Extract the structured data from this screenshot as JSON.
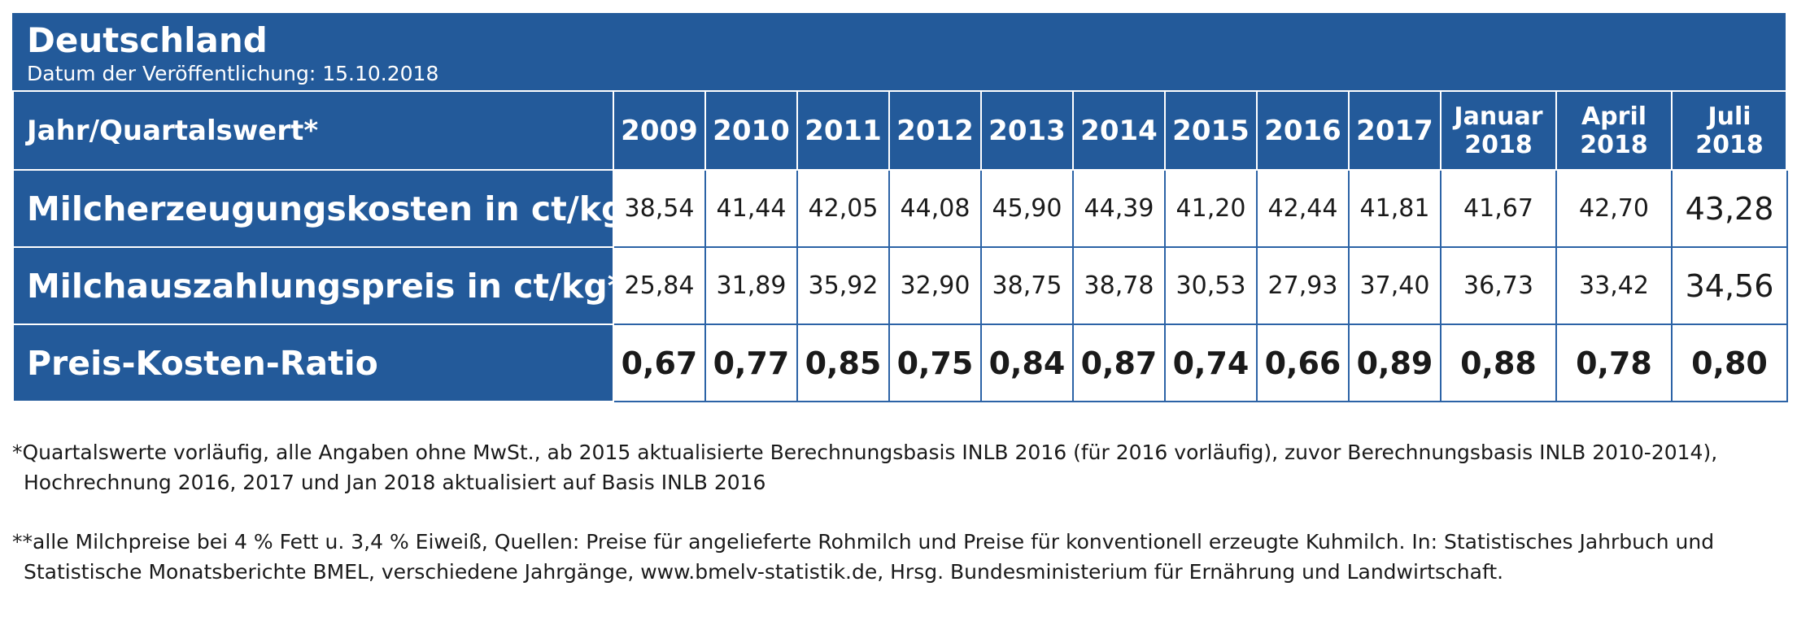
{
  "panel": {
    "title": "Deutschland",
    "subtitle": "Datum der Veröffentlichung: 15.10.2018"
  },
  "colors": {
    "panel_bg": "#235a9a",
    "cell_bg": "#ffffff",
    "grid_line": "#2c63a6"
  },
  "chart_data": {
    "type": "table",
    "title": "Deutschland",
    "subtitle": "Datum der Veröffentlichung: 15.10.2018",
    "row_header_label": "Jahr/Quartalswert*",
    "columns": [
      {
        "line1": "2009",
        "line2": ""
      },
      {
        "line1": "2010",
        "line2": ""
      },
      {
        "line1": "2011",
        "line2": ""
      },
      {
        "line1": "2012",
        "line2": ""
      },
      {
        "line1": "2013",
        "line2": ""
      },
      {
        "line1": "2014",
        "line2": ""
      },
      {
        "line1": "2015",
        "line2": ""
      },
      {
        "line1": "2016",
        "line2": ""
      },
      {
        "line1": "2017",
        "line2": ""
      },
      {
        "line1": "Januar",
        "line2": "2018"
      },
      {
        "line1": "April",
        "line2": "2018"
      },
      {
        "line1": "Juli",
        "line2": "2018"
      }
    ],
    "rows": [
      {
        "label": "Milcherzeugungskosten in ct/kg",
        "values": [
          "38,54",
          "41,44",
          "42,05",
          "44,08",
          "45,90",
          "44,39",
          "41,20",
          "42,44",
          "41,81",
          "41,67",
          "42,70",
          "43,28"
        ]
      },
      {
        "label": "Milchauszahlungspreis in ct/kg**",
        "values": [
          "25,84",
          "31,89",
          "35,92",
          "32,90",
          "38,75",
          "38,78",
          "30,53",
          "27,93",
          "37,40",
          "36,73",
          "33,42",
          "34,56"
        ]
      },
      {
        "label": "Preis-Kosten-Ratio",
        "values": [
          "0,67",
          "0,77",
          "0,85",
          "0,75",
          "0,84",
          "0,87",
          "0,74",
          "0,66",
          "0,89",
          "0,88",
          "0,78",
          "0,80"
        ]
      }
    ]
  },
  "footnotes": [
    "*Quartalswerte vorläufig, alle Angaben ohne MwSt., ab 2015 aktualisierte Berechnungsbasis INLB 2016 (für 2016 vorläufig), zuvor Berechnungsbasis INLB 2010-2014), Hochrechnung 2016, 2017 und Jan 2018 aktualisiert auf Basis INLB 2016",
    "**alle Milchpreise bei 4 % Fett u. 3,4 % Eiweiß, Quellen: Preise für angelieferte Rohmilch und Preise für konventionell erzeugte Kuhmilch. In: Statistisches Jahrbuch und Statistische Monatsberichte BMEL, verschiedene Jahrgänge, www.bmelv-statistik.de, Hrsg. Bundesministerium für Ernährung und Landwirtschaft."
  ]
}
